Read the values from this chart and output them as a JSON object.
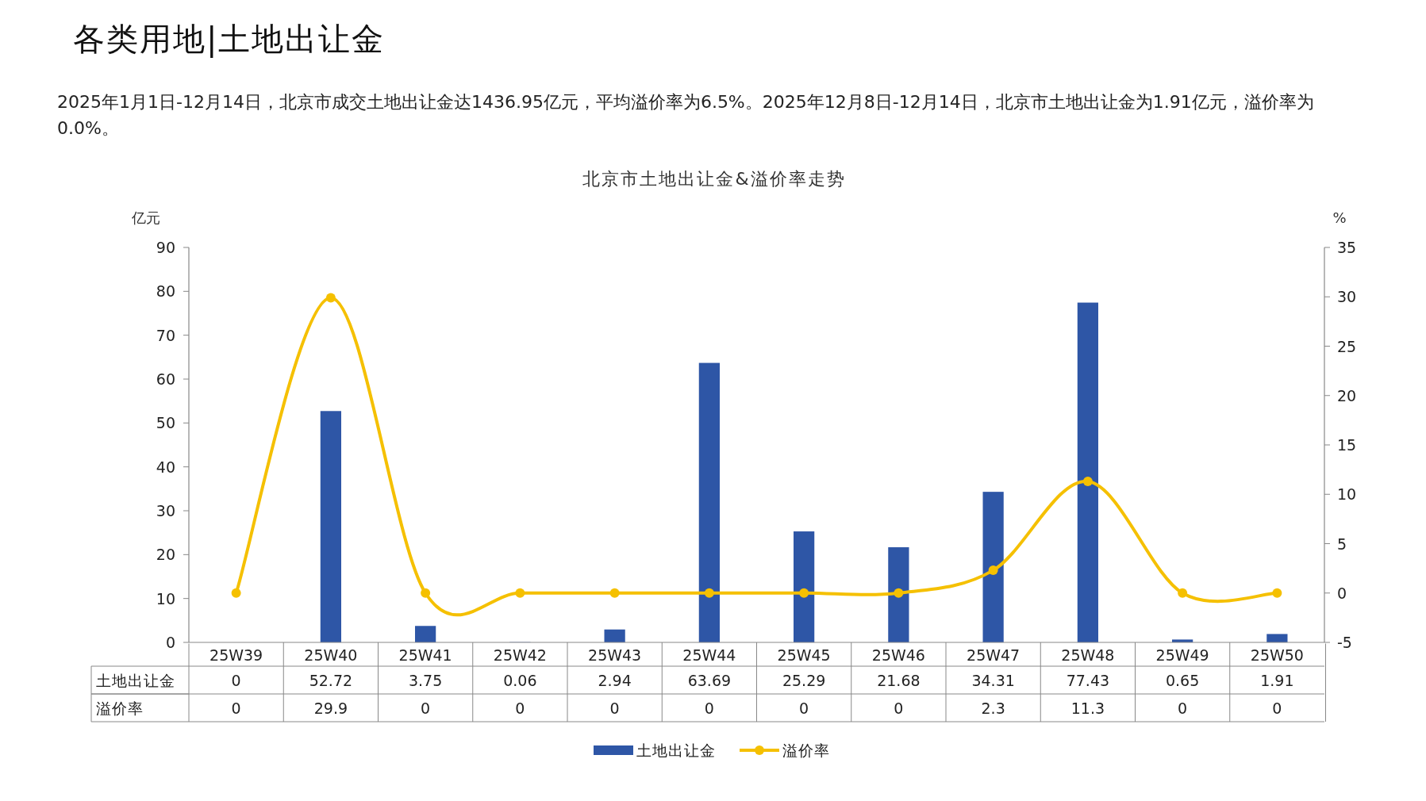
{
  "chart_data": {
    "type": "bar",
    "title": "北京市土地出让金&溢价率走势",
    "annotations": [
      "各类用地|土地出让金",
      "2025年1月1日-12月14日，北京市成交土地出让金达1436.95亿元，平均溢价率为6.5%。2025年12月8日-12月14日，北京市土地出让金为1.91亿元，溢价率为0.0%。"
    ],
    "ylabel": "亿元",
    "y2label": "%",
    "categories": [
      "25W39",
      "25W40",
      "25W41",
      "25W42",
      "25W43",
      "25W44",
      "25W45",
      "25W46",
      "25W47",
      "25W48",
      "25W49",
      "25W50"
    ],
    "series": [
      {
        "name": "土地出让金",
        "color": "#2e56a6",
        "values": [
          0,
          52.72,
          3.75,
          0.06,
          2.94,
          63.69,
          25.29,
          21.68,
          34.31,
          77.43,
          0.65,
          1.91
        ]
      },
      {
        "name": "溢价率",
        "type": "line",
        "axis": "y2",
        "color": "#f5c000",
        "values": [
          0,
          29.9,
          0,
          0,
          0,
          0,
          0,
          0,
          2.3,
          11.3,
          0,
          0
        ]
      }
    ],
    "ylim": [
      0,
      90
    ],
    "yticks": [
      0,
      10,
      20,
      30,
      40,
      50,
      60,
      70,
      80,
      90
    ],
    "y2lim": [
      -5,
      35
    ],
    "y2ticks": [
      -5,
      0,
      5,
      10,
      15,
      20,
      25,
      30,
      35
    ],
    "data_labels": true,
    "legend": "bottom",
    "grid": false,
    "marker": "circle"
  }
}
